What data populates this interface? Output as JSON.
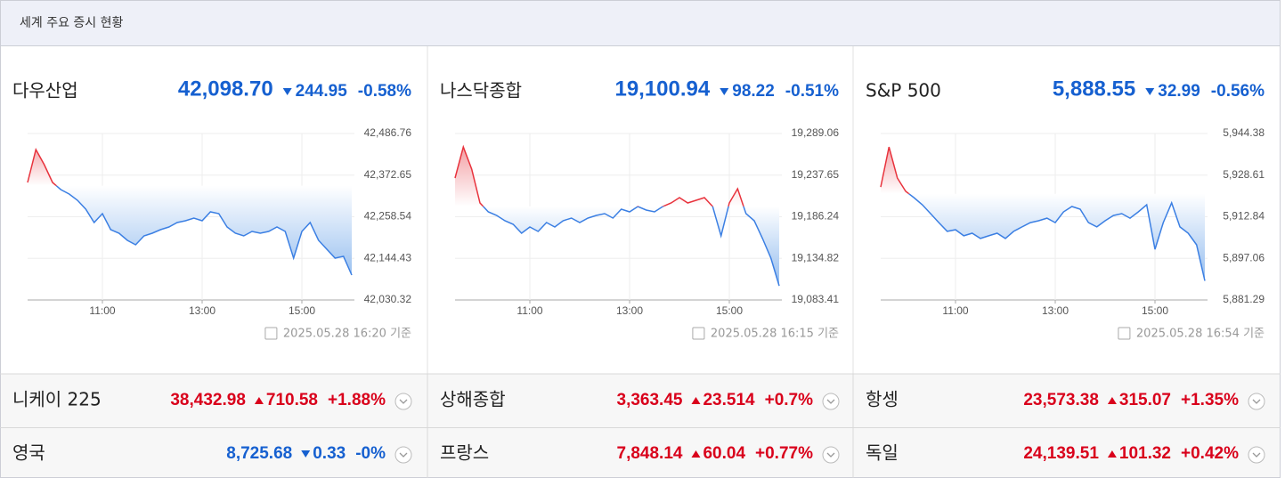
{
  "header": {
    "title": "세계 주요 증시 현황"
  },
  "up_color": "#d9001b",
  "down_color": "#1660d0",
  "chart_data": [
    {
      "type": "line",
      "title": "다우산업",
      "price": {
        "value": 42098.7,
        "label": "42,098.70"
      },
      "change": 244.95,
      "change_pct": "-0.58%",
      "direction": "down",
      "timestamp": "2025.05.28 16:20 기준",
      "x": [
        "09:30",
        "09:40",
        "09:50",
        "10:00",
        "10:10",
        "10:20",
        "10:30",
        "10:40",
        "10:50",
        "11:00",
        "11:10",
        "11:20",
        "11:30",
        "11:40",
        "11:50",
        "12:00",
        "12:10",
        "12:20",
        "12:30",
        "12:40",
        "12:50",
        "13:00",
        "13:10",
        "13:20",
        "13:30",
        "13:40",
        "13:50",
        "14:00",
        "14:10",
        "14:20",
        "14:30",
        "14:40",
        "14:50",
        "15:00",
        "15:10",
        "15:20",
        "15:30",
        "15:40",
        "15:50",
        "16:00"
      ],
      "series": [
        {
          "name": "다우산업",
          "color": "#3b7fe3",
          "up_color": "#e8323c",
          "values": [
            42352.5,
            42442.8,
            42401.3,
            42352.5,
            42333.0,
            42320.8,
            42303.7,
            42279.3,
            42242.7,
            42267.1,
            42223.1,
            42213.4,
            42193.8,
            42181.6,
            42206.0,
            42213.4,
            42223.1,
            42230.5,
            42242.7,
            42247.5,
            42254.9,
            42247.5,
            42271.9,
            42267.1,
            42230.5,
            42213.4,
            42206.0,
            42218.2,
            42213.4,
            42218.2,
            42230.5,
            42218.2,
            42145.0,
            42218.2,
            42242.7,
            42193.8,
            42169.4,
            42145.0,
            42149.9,
            42098.7
          ]
        }
      ],
      "ylim": [
        42030.32,
        42486.76
      ],
      "yticks": [
        {
          "value": 42030.32,
          "label": "42,030.32"
        },
        {
          "value": 42144.43,
          "label": "42,144.43"
        },
        {
          "value": 42258.54,
          "label": "42,258.54"
        },
        {
          "value": 42372.65,
          "label": "42,372.65"
        },
        {
          "value": 42486.76,
          "label": "42,486.76"
        }
      ],
      "xticks": [
        "11:00",
        "13:00",
        "15:00"
      ],
      "grid": true
    },
    {
      "type": "line",
      "title": "나스닥종합",
      "price": {
        "value": 19100.94,
        "label": "19,100.94"
      },
      "change": 98.22,
      "change_pct": "-0.51%",
      "direction": "down",
      "timestamp": "2025.05.28 16:15 기준",
      "x": [
        "09:30",
        "09:40",
        "09:50",
        "10:00",
        "10:10",
        "10:20",
        "10:30",
        "10:40",
        "10:50",
        "11:00",
        "11:10",
        "11:20",
        "11:30",
        "11:40",
        "11:50",
        "12:00",
        "12:10",
        "12:20",
        "12:30",
        "12:40",
        "12:50",
        "13:00",
        "13:10",
        "13:20",
        "13:30",
        "13:40",
        "13:50",
        "14:00",
        "14:10",
        "14:20",
        "14:30",
        "14:40",
        "14:50",
        "15:00",
        "15:10",
        "15:20",
        "15:30",
        "15:40",
        "15:50",
        "16:00"
      ],
      "series": [
        {
          "name": "나스닥종합",
          "color": "#3b7fe3",
          "up_color": "#e8323c",
          "values": [
            19234.1,
            19272.5,
            19245.1,
            19203.3,
            19192.3,
            19187.9,
            19181.3,
            19176.9,
            19165.9,
            19173.6,
            19168.1,
            19179.1,
            19173.6,
            19181.3,
            19184.6,
            19179.1,
            19184.6,
            19187.9,
            19190.1,
            19184.6,
            19195.6,
            19192.3,
            19198.9,
            19194.5,
            19192.3,
            19198.9,
            19203.3,
            19209.9,
            19203.3,
            19206.6,
            19209.9,
            19198.9,
            19162.6,
            19203.3,
            19220.9,
            19190.1,
            19181.3,
            19159.3,
            19135.1,
            19100.94
          ]
        }
      ],
      "ylim": [
        19083.41,
        19289.06
      ],
      "yticks": [
        {
          "value": 19083.41,
          "label": "19,083.41"
        },
        {
          "value": 19134.82,
          "label": "19,134.82"
        },
        {
          "value": 19186.24,
          "label": "19,186.24"
        },
        {
          "value": 19237.65,
          "label": "19,237.65"
        },
        {
          "value": 19289.06,
          "label": "19,289.06"
        }
      ],
      "xticks": [
        "11:00",
        "13:00",
        "15:00"
      ],
      "grid": true
    },
    {
      "type": "line",
      "title": "S&P 500",
      "price": {
        "value": 5888.55,
        "label": "5,888.55"
      },
      "change": 32.99,
      "change_pct": "-0.56%",
      "direction": "down",
      "timestamp": "2025.05.28 16:54 기준",
      "x": [
        "09:30",
        "09:40",
        "09:50",
        "10:00",
        "10:10",
        "10:20",
        "10:30",
        "10:40",
        "10:50",
        "11:00",
        "11:10",
        "11:20",
        "11:30",
        "11:40",
        "11:50",
        "12:00",
        "12:10",
        "12:20",
        "12:30",
        "12:40",
        "12:50",
        "13:00",
        "13:10",
        "13:20",
        "13:30",
        "13:40",
        "13:50",
        "14:00",
        "14:10",
        "14:20",
        "14:30",
        "14:40",
        "14:50",
        "15:00",
        "15:10",
        "15:20",
        "15:30",
        "15:40",
        "15:50",
        "16:00"
      ],
      "series": [
        {
          "name": "S&P 500",
          "color": "#3b7fe3",
          "up_color": "#e8323c",
          "values": [
            5924.1,
            5939.3,
            5927.5,
            5922.5,
            5920.1,
            5917.4,
            5914.0,
            5910.6,
            5907.3,
            5907.9,
            5905.6,
            5906.6,
            5904.6,
            5905.6,
            5906.6,
            5904.6,
            5907.3,
            5909.0,
            5910.6,
            5911.3,
            5912.3,
            5910.6,
            5914.7,
            5916.7,
            5915.7,
            5910.6,
            5909.0,
            5911.3,
            5913.3,
            5914.0,
            5912.3,
            5914.7,
            5917.4,
            5900.5,
            5910.6,
            5918.1,
            5909.0,
            5906.6,
            5902.2,
            5888.55
          ]
        }
      ],
      "ylim": [
        5881.29,
        5944.38
      ],
      "yticks": [
        {
          "value": 5881.29,
          "label": "5,881.29"
        },
        {
          "value": 5897.06,
          "label": "5,897.06"
        },
        {
          "value": 5912.84,
          "label": "5,912.84"
        },
        {
          "value": 5928.61,
          "label": "5,928.61"
        },
        {
          "value": 5944.38,
          "label": "5,944.38"
        }
      ],
      "xticks": [
        "11:00",
        "13:00",
        "15:00"
      ],
      "grid": true
    }
  ],
  "table": {
    "rows": [
      [
        {
          "name": "니케이 225",
          "value": "38,432.98",
          "change": "710.58",
          "pct": "+1.88%",
          "direction": "up"
        },
        {
          "name": "상해종합",
          "value": "3,363.45",
          "change": "23.514",
          "pct": "+0.7%",
          "direction": "up"
        },
        {
          "name": "항셍",
          "value": "23,573.38",
          "change": "315.07",
          "pct": "+1.35%",
          "direction": "up"
        }
      ],
      [
        {
          "name": "영국",
          "value": "8,725.68",
          "change": "0.33",
          "pct": "-0%",
          "direction": "down"
        },
        {
          "name": "프랑스",
          "value": "7,848.14",
          "change": "60.04",
          "pct": "+0.77%",
          "direction": "up"
        },
        {
          "name": "독일",
          "value": "24,139.51",
          "change": "101.32",
          "pct": "+0.42%",
          "direction": "up"
        }
      ]
    ]
  }
}
